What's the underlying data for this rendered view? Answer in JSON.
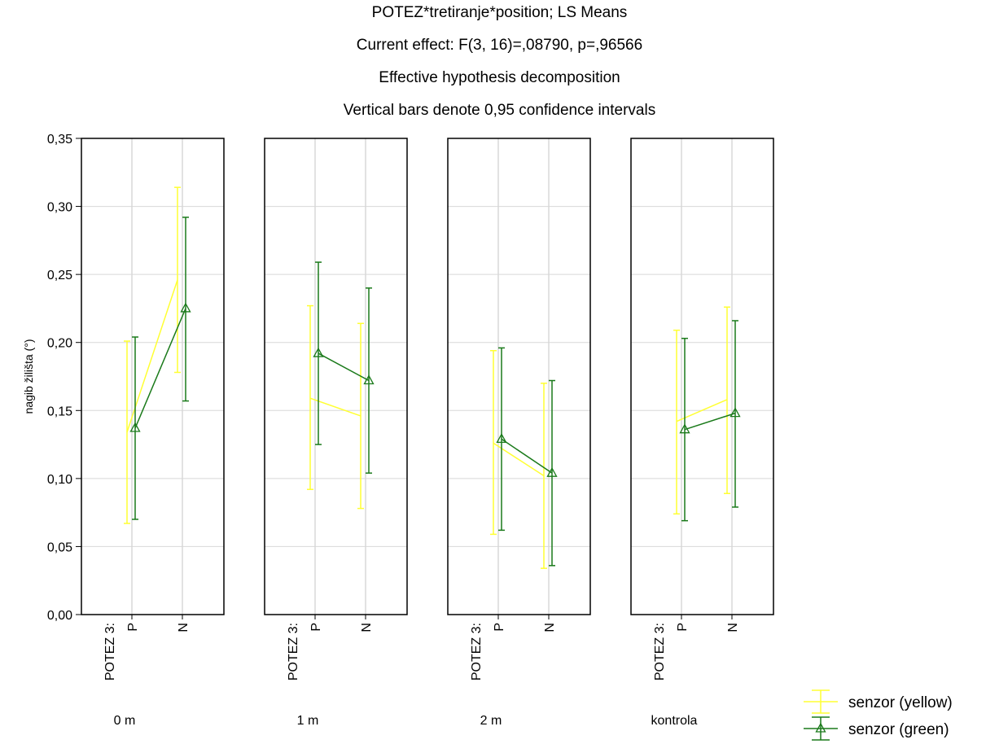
{
  "chart_data": {
    "type": "line",
    "title_lines": [
      "POTEZ*tretiranje*position; LS Means",
      "Current effect: F(3, 16)=,08790, p=,96566",
      "Effective hypothesis decomposition",
      "Vertical bars denote 0,95 confidence intervals"
    ],
    "ylabel": "nagib žilišta (°)",
    "ylim": [
      0,
      0.35
    ],
    "yticks": [
      "0,00",
      "0,05",
      "0,10",
      "0,15",
      "0,20",
      "0,25",
      "0,30",
      "0,35"
    ],
    "x_factor_label": "POTEZ 3:",
    "categories": [
      "P",
      "N"
    ],
    "grid": true,
    "legend_position": "bottom-right",
    "panels": [
      {
        "label": "0 m",
        "series": [
          {
            "name": "senzor (yellow)",
            "color": "#ffff33",
            "mean": [
              0.134,
              0.246
            ],
            "lower": [
              0.067,
              0.178
            ],
            "upper": [
              0.201,
              0.314
            ]
          },
          {
            "name": "senzor (green)",
            "color": "#1a7a1a",
            "mean": [
              0.137,
              0.225
            ],
            "lower": [
              0.07,
              0.157
            ],
            "upper": [
              0.204,
              0.292
            ]
          }
        ]
      },
      {
        "label": "1 m",
        "series": [
          {
            "name": "senzor (yellow)",
            "color": "#ffff33",
            "mean": [
              0.159,
              0.146
            ],
            "lower": [
              0.092,
              0.078
            ],
            "upper": [
              0.227,
              0.214
            ]
          },
          {
            "name": "senzor (green)",
            "color": "#1a7a1a",
            "mean": [
              0.192,
              0.172
            ],
            "lower": [
              0.125,
              0.104
            ],
            "upper": [
              0.259,
              0.24
            ]
          }
        ]
      },
      {
        "label": "2 m",
        "series": [
          {
            "name": "senzor (yellow)",
            "color": "#ffff33",
            "mean": [
              0.126,
              0.102
            ],
            "lower": [
              0.059,
              0.034
            ],
            "upper": [
              0.194,
              0.17
            ]
          },
          {
            "name": "senzor (green)",
            "color": "#1a7a1a",
            "mean": [
              0.129,
              0.104
            ],
            "lower": [
              0.062,
              0.036
            ],
            "upper": [
              0.196,
              0.172
            ]
          }
        ]
      },
      {
        "label": "kontrola",
        "series": [
          {
            "name": "senzor (yellow)",
            "color": "#ffff33",
            "mean": [
              0.142,
              0.158
            ],
            "lower": [
              0.074,
              0.089
            ],
            "upper": [
              0.209,
              0.226
            ]
          },
          {
            "name": "senzor (green)",
            "color": "#1a7a1a",
            "mean": [
              0.136,
              0.148
            ],
            "lower": [
              0.069,
              0.079
            ],
            "upper": [
              0.203,
              0.216
            ]
          }
        ]
      }
    ],
    "legend": [
      {
        "label": "senzor (yellow)",
        "color": "#ffff33",
        "marker": "none"
      },
      {
        "label": "senzor (green)",
        "color": "#1a7a1a",
        "marker": "triangle"
      }
    ]
  }
}
